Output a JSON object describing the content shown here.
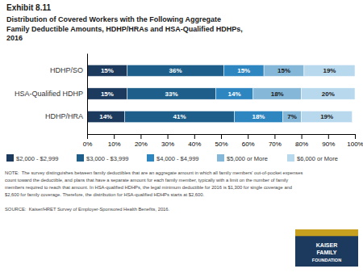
{
  "chart_data": {
    "type": "bar",
    "orientation": "horizontal",
    "stacked": true,
    "data_labels": true,
    "grid": false,
    "legend": "bottom",
    "title": "Exhibit 8.11",
    "subtitle": "Distribution of Covered Workers with the Following Aggregate\nFamily Deductible Amounts, HDHP/HRAs and HSA-Qualified HDHPs,\n2016",
    "categories": [
      "HDHP/SO",
      "HSA-Qualified HDHP",
      "HDHP/HRA"
    ],
    "series": [
      {
        "name": "$2,000 - $2,999",
        "color": "#1b3a5e",
        "values": [
          15,
          15,
          14
        ],
        "value_labels": [
          "15%",
          "15%",
          "14%"
        ]
      },
      {
        "name": "$3,000 - $3,999",
        "color": "#1d5f8a",
        "values": [
          36,
          33,
          41
        ],
        "value_labels": [
          "36%",
          "33%",
          "41%"
        ]
      },
      {
        "name": "$4,000 - $4,999",
        "color": "#2e86c0",
        "values": [
          15,
          14,
          18
        ],
        "value_labels": [
          "15%",
          "14%",
          "18%"
        ]
      },
      {
        "name": "$5,000 or More",
        "color": "#85b8d8",
        "values": [
          15,
          18,
          7
        ],
        "value_labels": [
          "15%",
          "18%",
          "7%"
        ]
      },
      {
        "name": "$6,000 or More",
        "color": "#b8d9ed",
        "values": [
          19,
          20,
          19
        ],
        "value_labels": [
          "19%",
          "20%",
          "19%"
        ]
      }
    ],
    "xlim": [
      0,
      100
    ],
    "xticks": [
      {
        "value": 0,
        "label": "0%"
      },
      {
        "value": 10,
        "label": "10%"
      },
      {
        "value": 20,
        "label": "20%"
      },
      {
        "value": 30,
        "label": "30%"
      },
      {
        "value": 40,
        "label": "40%"
      },
      {
        "value": 50,
        "label": "50%"
      },
      {
        "value": 60,
        "label": "60%"
      },
      {
        "value": 70,
        "label": "70%"
      },
      {
        "value": 80,
        "label": "80%"
      },
      {
        "value": 90,
        "label": "90%"
      },
      {
        "value": 100,
        "label": "100%"
      }
    ],
    "notes": [
      "NOTE:  The survey distinguishes between family deductibles that are an aggregate amount in which all family members' out-of-pocket expenses",
      "count toward the deductible, and plans that have a separate amount for each family member, typically with a limit on the number of family",
      "members required to reach that amount. In HSA-qualified HDHPs, the legal minimum deductible for 2016 is $1,300 for single coverage and",
      "$2,600 for family coverage. Therefore, the distribution for HSA-qualified HDHPs starts at $2,600."
    ],
    "source": "SOURCE:  Kaiser/HRET Survey of Employer-Sponsored Health Benefits, 2016.",
    "annotations": [
      "KAISER",
      "FAMILY",
      "FOUNDATION"
    ]
  }
}
